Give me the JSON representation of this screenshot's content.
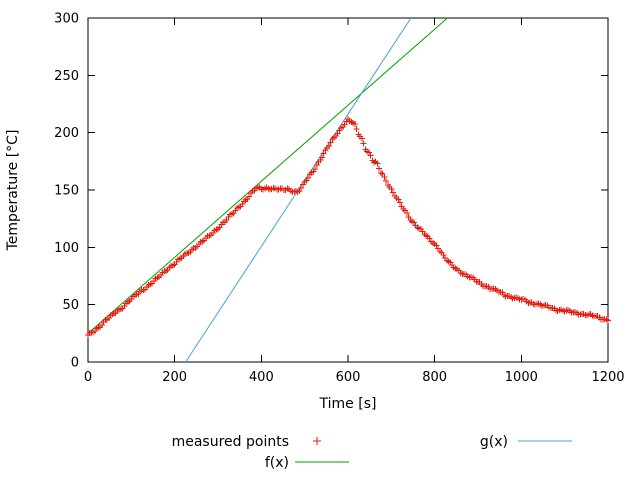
{
  "chart_data": {
    "type": "scatter",
    "title": "",
    "xlabel": "Time [s]",
    "ylabel": "Temperature [°C]",
    "xlim": [
      0,
      1200
    ],
    "ylim": [
      0,
      300
    ],
    "xticks": [
      0,
      200,
      400,
      600,
      800,
      1000,
      1200
    ],
    "yticks": [
      0,
      50,
      100,
      150,
      200,
      250,
      300
    ],
    "grid": false,
    "legend_position": "below-plot",
    "series": [
      {
        "name": "measured points",
        "type": "points",
        "marker": "plus",
        "color": "#e51e10",
        "sample_step": 4,
        "anchors": [
          [
            0,
            23
          ],
          [
            20,
            29
          ],
          [
            40,
            36
          ],
          [
            60,
            42
          ],
          [
            80,
            48
          ],
          [
            100,
            55
          ],
          [
            120,
            61
          ],
          [
            140,
            67
          ],
          [
            160,
            73
          ],
          [
            180,
            80
          ],
          [
            200,
            86
          ],
          [
            220,
            92
          ],
          [
            240,
            98
          ],
          [
            260,
            104
          ],
          [
            280,
            110
          ],
          [
            300,
            117
          ],
          [
            320,
            124
          ],
          [
            340,
            132
          ],
          [
            360,
            140
          ],
          [
            380,
            148
          ],
          [
            390,
            152
          ],
          [
            400,
            151
          ],
          [
            415,
            152
          ],
          [
            430,
            151
          ],
          [
            445,
            150
          ],
          [
            460,
            151
          ],
          [
            475,
            149
          ],
          [
            485,
            148
          ],
          [
            495,
            153
          ],
          [
            510,
            162
          ],
          [
            525,
            170
          ],
          [
            540,
            179
          ],
          [
            555,
            188
          ],
          [
            570,
            197
          ],
          [
            580,
            202
          ],
          [
            590,
            207
          ],
          [
            600,
            211
          ],
          [
            610,
            209
          ],
          [
            620,
            203
          ],
          [
            630,
            196
          ],
          [
            640,
            188
          ],
          [
            650,
            180
          ],
          [
            658,
            175
          ],
          [
            666,
            172
          ],
          [
            675,
            167
          ],
          [
            690,
            157
          ],
          [
            705,
            147
          ],
          [
            720,
            138
          ],
          [
            735,
            130
          ],
          [
            750,
            122
          ],
          [
            765,
            116
          ],
          [
            780,
            110
          ],
          [
            795,
            105
          ],
          [
            808,
            100
          ],
          [
            815,
            96
          ],
          [
            822,
            91
          ],
          [
            830,
            88
          ],
          [
            840,
            84
          ],
          [
            855,
            80
          ],
          [
            870,
            76
          ],
          [
            885,
            73
          ],
          [
            900,
            70
          ],
          [
            915,
            67
          ],
          [
            930,
            64
          ],
          [
            945,
            62
          ],
          [
            960,
            59
          ],
          [
            975,
            57
          ],
          [
            990,
            55
          ],
          [
            1005,
            54
          ],
          [
            1020,
            52
          ],
          [
            1035,
            51
          ],
          [
            1050,
            49
          ],
          [
            1065,
            48
          ],
          [
            1080,
            46
          ],
          [
            1095,
            45
          ],
          [
            1110,
            44
          ],
          [
            1125,
            43
          ],
          [
            1140,
            42
          ],
          [
            1155,
            41
          ],
          [
            1170,
            40
          ],
          [
            1185,
            38
          ],
          [
            1200,
            37
          ]
        ]
      },
      {
        "name": "f(x)",
        "type": "line",
        "color": "#00a000",
        "linear": {
          "slope": 0.3315,
          "intercept": 25
        }
      },
      {
        "name": "g(x)",
        "type": "line",
        "color": "#45a3d6",
        "linear": {
          "slope": 0.577,
          "intercept": -130
        }
      }
    ]
  }
}
